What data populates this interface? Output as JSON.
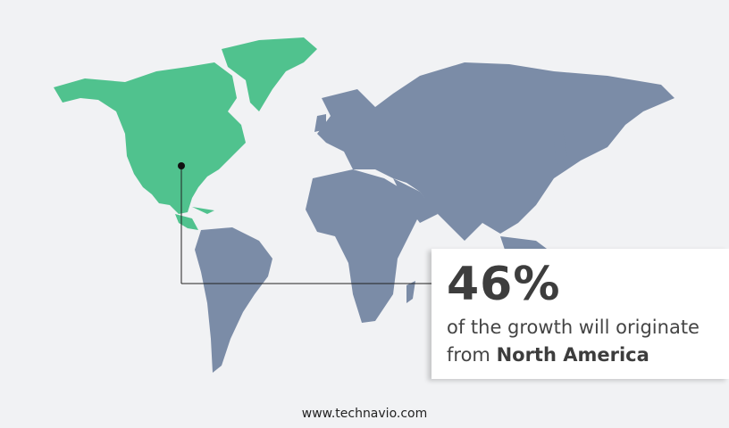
{
  "callout": {
    "percentage": "46%",
    "line1": "of the growth will originate",
    "line2_prefix": "from",
    "region": "North America"
  },
  "footer": {
    "website": "www.technavio.com"
  },
  "colors": {
    "highlight_region": "#50c28e",
    "other_regions": "#7b8ca7",
    "background": "#f1f2f4"
  },
  "map": {
    "highlighted_region": "North America"
  }
}
